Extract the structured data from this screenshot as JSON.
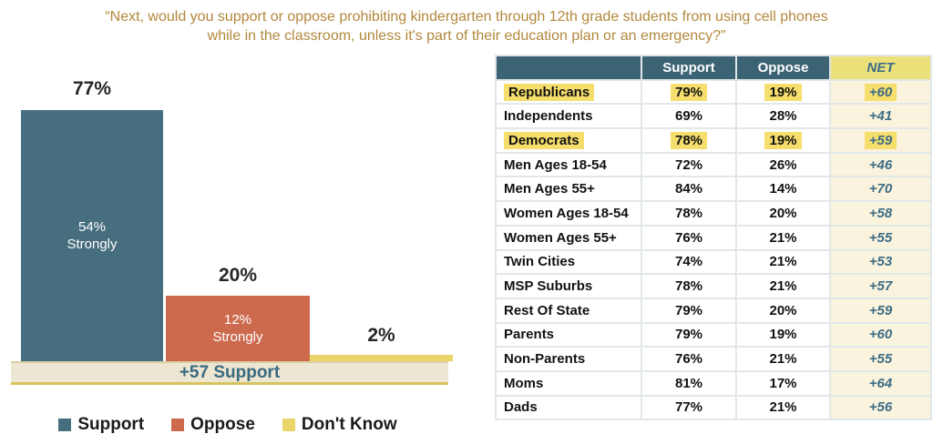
{
  "title": {
    "line1": "“Next, would you support or oppose prohibiting kindergarten through 12th grade students from using cell phones",
    "line2": "while in the classroom, unless it's part of their education plan or an emergency?”"
  },
  "chart_data": {
    "type": "bar",
    "categories": [
      "Support",
      "Oppose",
      "Don't Know"
    ],
    "values": [
      77,
      20,
      2
    ],
    "bar_labels": [
      "77%",
      "20%",
      "2%"
    ],
    "strongly_values": [
      54,
      12,
      null
    ],
    "inner_labels": [
      "54%\nStrongly",
      "12%\nStrongly",
      ""
    ],
    "net_banner": "+57 Support",
    "ylim": [
      0,
      100
    ],
    "grid": false,
    "legend_position": "bottom",
    "legend": [
      {
        "label": "Support",
        "color": "#476E7F"
      },
      {
        "label": "Oppose",
        "color": "#CD6A4E"
      },
      {
        "label": "Don't Know",
        "color": "#E9D569"
      }
    ]
  },
  "table": {
    "headers": [
      "",
      "Support",
      "Oppose",
      "NET"
    ],
    "rows": [
      {
        "label": "Republicans",
        "support": "79%",
        "oppose": "19%",
        "net": "+60",
        "highlight": true
      },
      {
        "label": "Independents",
        "support": "69%",
        "oppose": "28%",
        "net": "+41",
        "highlight": false
      },
      {
        "label": "Democrats",
        "support": "78%",
        "oppose": "19%",
        "net": "+59",
        "highlight": true
      },
      {
        "label": "Men Ages 18-54",
        "support": "72%",
        "oppose": "26%",
        "net": "+46",
        "highlight": false
      },
      {
        "label": "Men Ages 55+",
        "support": "84%",
        "oppose": "14%",
        "net": "+70",
        "highlight": false
      },
      {
        "label": "Women Ages 18-54",
        "support": "78%",
        "oppose": "20%",
        "net": "+58",
        "highlight": false
      },
      {
        "label": "Women Ages 55+",
        "support": "76%",
        "oppose": "21%",
        "net": "+55",
        "highlight": false
      },
      {
        "label": "Twin Cities",
        "support": "74%",
        "oppose": "21%",
        "net": "+53",
        "highlight": false
      },
      {
        "label": "MSP Suburbs",
        "support": "78%",
        "oppose": "21%",
        "net": "+57",
        "highlight": false
      },
      {
        "label": "Rest Of State",
        "support": "79%",
        "oppose": "20%",
        "net": "+59",
        "highlight": false
      },
      {
        "label": "Parents",
        "support": "79%",
        "oppose": "19%",
        "net": "+60",
        "highlight": false
      },
      {
        "label": "Non-Parents",
        "support": "76%",
        "oppose": "21%",
        "net": "+55",
        "highlight": false
      },
      {
        "label": "Moms",
        "support": "81%",
        "oppose": "17%",
        "net": "+64",
        "highlight": false
      },
      {
        "label": "Dads",
        "support": "77%",
        "oppose": "21%",
        "net": "+56",
        "highlight": false
      }
    ]
  },
  "colors": {
    "title_gold": "#B2883C",
    "header_teal": "#3C6374",
    "net_text_teal": "#3E6D85",
    "highlight_yellow": "#F6DE6D",
    "net_header_yellow": "#ECE07A",
    "net_cell_cream": "#FAF3DE",
    "banner_beige": "#EDE6D2"
  }
}
